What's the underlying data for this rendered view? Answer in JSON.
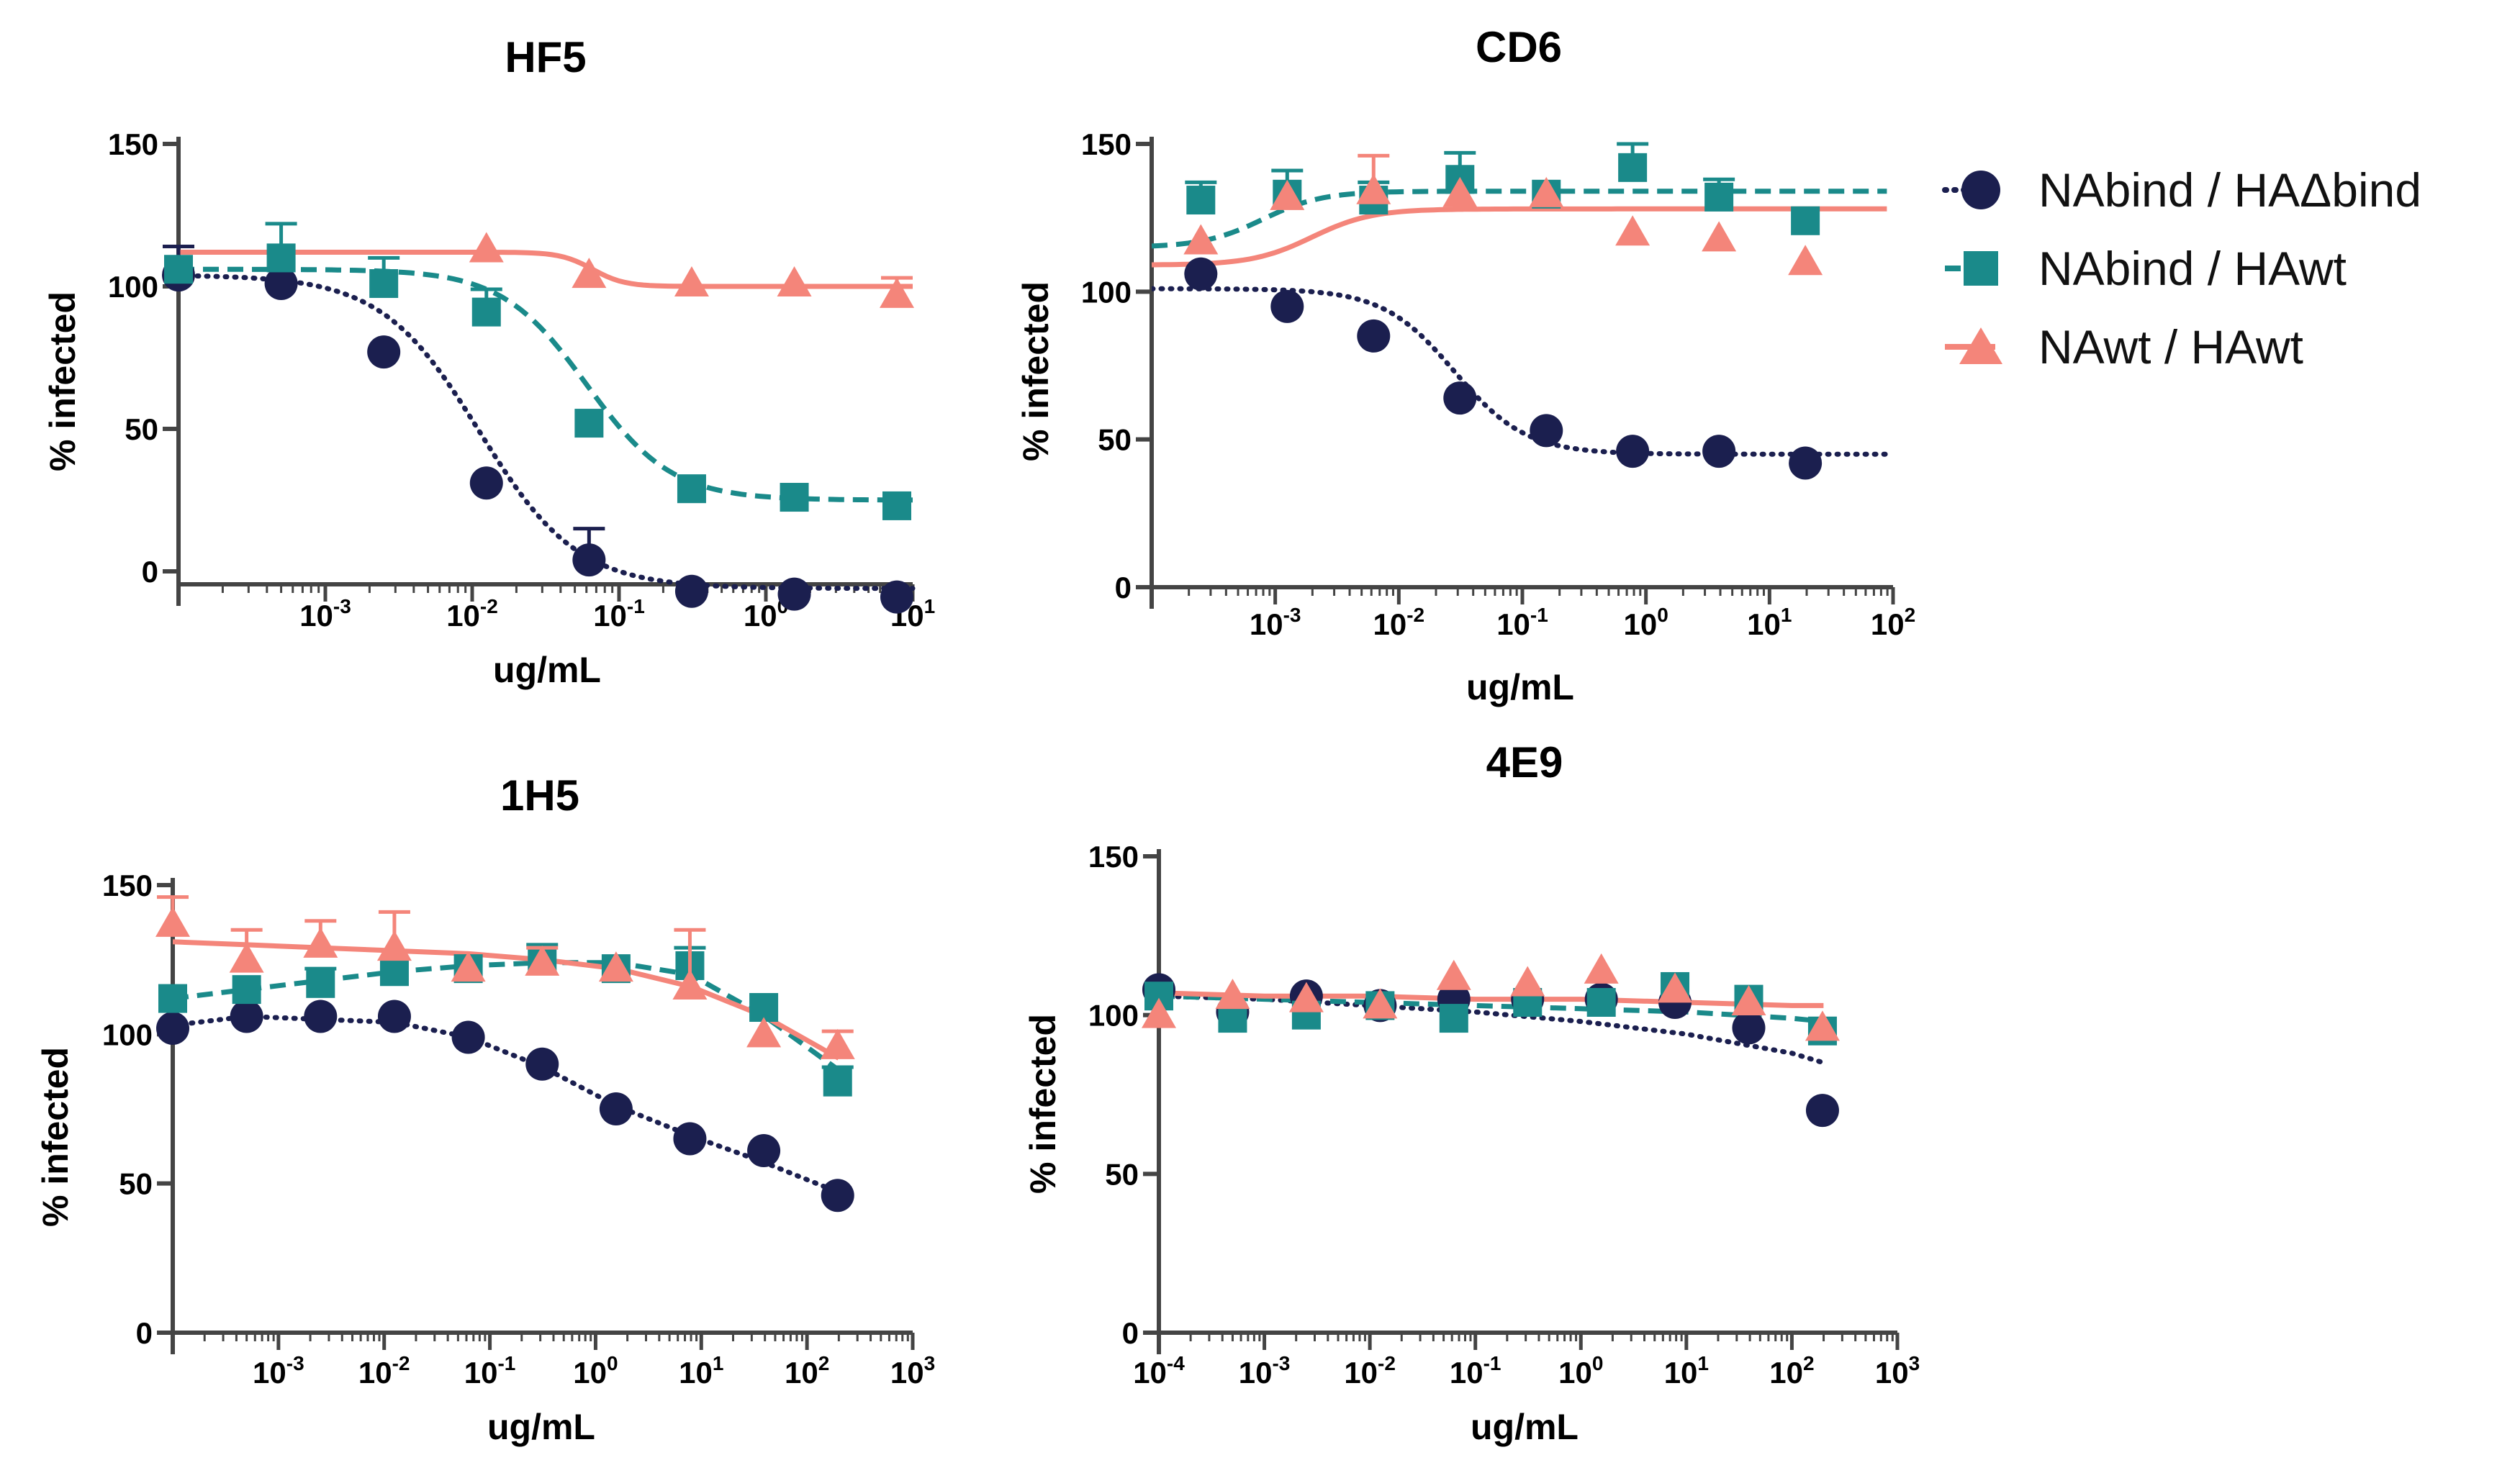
{
  "chart_data": [
    {
      "type": "scatter",
      "title": "HF5",
      "xlabel": "ug/mL",
      "ylabel": "% infected",
      "xscale": "log",
      "xlim": [
        0.0001,
        10
      ],
      "ylim": [
        0,
        150
      ],
      "x_tick_labels": [
        "10-3",
        "10-2",
        "10-1",
        "100",
        "101"
      ],
      "y_tick_labels": [
        "0",
        "50",
        "100",
        "150"
      ],
      "series": [
        {
          "name": "NAbind / HAΔbind",
          "x": [
            0.0001,
            0.0005,
            0.0025,
            0.0125,
            0.0625,
            0.3125,
            1.5625,
            7.8
          ],
          "values": [
            104,
            101,
            77,
            31,
            4,
            -7,
            -8,
            -9
          ],
          "err": [
            10,
            0,
            0,
            0,
            11,
            0,
            0,
            0
          ]
        },
        {
          "name": "NAbind / HAwt",
          "x": [
            0.0001,
            0.0005,
            0.0025,
            0.0125,
            0.0625,
            0.3125,
            1.5625,
            7.8
          ],
          "values": [
            106,
            110,
            101,
            91,
            52,
            29,
            26,
            23
          ],
          "err": [
            0,
            12,
            9,
            8,
            0,
            0,
            0,
            0
          ]
        },
        {
          "name": "NAwt / HAwt",
          "x": [
            0.0125,
            0.0625,
            0.3125,
            1.5625,
            7.8
          ],
          "values": [
            113,
            104,
            101,
            101,
            97
          ],
          "err": [
            0,
            0,
            0,
            0,
            6
          ]
        }
      ]
    },
    {
      "type": "scatter",
      "title": "CD6",
      "xlabel": "ug/mL",
      "ylabel": "% infected",
      "xscale": "log",
      "xlim": [
        0.0001,
        100
      ],
      "ylim": [
        0,
        150
      ],
      "x_tick_labels": [
        "10-3",
        "10-2",
        "10-1",
        "100",
        "101",
        "102"
      ],
      "y_tick_labels": [
        "0",
        "50",
        "100",
        "150"
      ],
      "series": [
        {
          "name": "NAbind / HAΔbind",
          "x": [
            0.00025,
            0.00125,
            0.00625,
            0.03125,
            0.15625,
            0.78,
            3.9,
            19.5
          ],
          "values": [
            106,
            95,
            85,
            64,
            53,
            46,
            46,
            42
          ],
          "err": [
            0,
            0,
            0,
            0,
            0,
            0,
            0,
            0
          ]
        },
        {
          "name": "NAbind / HAwt",
          "x": [
            0.00025,
            0.00125,
            0.00625,
            0.03125,
            0.15625,
            0.78,
            3.9,
            19.5
          ],
          "values": [
            131,
            133,
            131,
            138,
            133,
            142,
            132,
            124
          ],
          "err": [
            6,
            8,
            6,
            9,
            0,
            8,
            6,
            0
          ]
        },
        {
          "name": "NAwt / HAwt",
          "x": [
            0.00025,
            0.00125,
            0.00625,
            0.03125,
            0.15625,
            0.78,
            3.9,
            19.5
          ],
          "values": [
            117,
            132,
            134,
            133,
            133,
            120,
            118,
            110
          ],
          "err": [
            0,
            0,
            12,
            0,
            0,
            0,
            0,
            0
          ]
        }
      ]
    },
    {
      "type": "scatter",
      "title": "1H5",
      "xlabel": "ug/mL",
      "ylabel": "% infected",
      "xscale": "log",
      "xlim": [
        0.0001,
        1000
      ],
      "ylim": [
        0,
        150
      ],
      "x_tick_labels": [
        "10-3",
        "10-2",
        "10-1",
        "100",
        "101",
        "102",
        "103"
      ],
      "y_tick_labels": [
        "0",
        "50",
        "100",
        "150"
      ],
      "series": [
        {
          "name": "NAbind / HAΔbind",
          "x": [
            0.0001,
            0.0005,
            0.0025,
            0.0125,
            0.0625,
            0.3125,
            1.5625,
            7.8,
            39,
            195
          ],
          "values": [
            102,
            106,
            106,
            106,
            99,
            90,
            75,
            65,
            61,
            46
          ],
          "err": [
            0,
            0,
            0,
            0,
            0,
            0,
            0,
            0,
            0,
            0
          ]
        },
        {
          "name": "NAbind / HAwt",
          "x": [
            0.0001,
            0.0005,
            0.0025,
            0.0125,
            0.0625,
            0.3125,
            1.5625,
            7.8,
            39,
            195
          ],
          "values": [
            112,
            115,
            117,
            121,
            122,
            125,
            122,
            123,
            109,
            84
          ],
          "err": [
            0,
            0,
            5,
            0,
            0,
            5,
            0,
            6,
            0,
            5
          ]
        },
        {
          "name": "NAwt / HAwt",
          "x": [
            0.0001,
            0.0005,
            0.0025,
            0.0125,
            0.0625,
            0.3125,
            1.5625,
            7.8,
            39,
            195
          ],
          "values": [
            137,
            125,
            130,
            129,
            122,
            124,
            122,
            116,
            100,
            96
          ],
          "err": [
            9,
            10,
            8,
            12,
            0,
            5,
            0,
            19,
            0,
            5
          ]
        }
      ]
    },
    {
      "type": "scatter",
      "title": "4E9",
      "xlabel": "ug/mL",
      "ylabel": "% infected",
      "xscale": "log",
      "xlim": [
        0.0001,
        1000
      ],
      "ylim": [
        0,
        150
      ],
      "x_tick_labels": [
        "10-4",
        "10-3",
        "10-2",
        "10-1",
        "100",
        "101",
        "102",
        "103"
      ],
      "y_tick_labels": [
        "0",
        "50",
        "100",
        "150"
      ],
      "series": [
        {
          "name": "NAbind / HAΔbind",
          "x": [
            0.0001,
            0.0005,
            0.0025,
            0.0125,
            0.0625,
            0.3125,
            1.5625,
            7.8,
            39,
            195
          ],
          "values": [
            108,
            101,
            106,
            103,
            105,
            105,
            105,
            104,
            96,
            70
          ],
          "err": [
            0,
            0,
            0,
            0,
            0,
            0,
            0,
            0,
            0,
            0
          ]
        },
        {
          "name": "NAbind / HAwt",
          "x": [
            0.0001,
            0.0005,
            0.0025,
            0.0125,
            0.0625,
            0.3125,
            1.5625,
            7.8,
            39,
            195
          ],
          "values": [
            106,
            99,
            100,
            103,
            99,
            104,
            104,
            109,
            105,
            95
          ],
          "err": [
            0,
            0,
            0,
            0,
            0,
            0,
            0,
            0,
            0,
            0
          ]
        },
        {
          "name": "NAwt / HAwt",
          "x": [
            0.0001,
            0.0005,
            0.0025,
            0.0125,
            0.0625,
            0.3125,
            1.5625,
            7.8,
            39,
            195
          ],
          "values": [
            100,
            106,
            105,
            103,
            112,
            110,
            114,
            108,
            104,
            96
          ],
          "err": [
            0,
            0,
            0,
            0,
            0,
            0,
            0,
            0,
            0,
            0
          ]
        }
      ]
    }
  ],
  "legend": {
    "position": "top-right",
    "items": [
      {
        "label": "NAbind / HAΔbind",
        "marker": "circle",
        "line": "dotted",
        "color": "#1b1f4f"
      },
      {
        "label": "NAbind / HAwt",
        "marker": "square",
        "line": "dashed",
        "color": "#1a8a8a"
      },
      {
        "label": "NAwt / HAwt",
        "marker": "triangle",
        "line": "solid",
        "color": "#f4857a"
      }
    ]
  },
  "curves": [
    [
      {
        "type": "sigmoid",
        "top": 104,
        "bottom": -6,
        "log_ic50": -1.95,
        "hill": 1.3
      },
      {
        "type": "sigmoid",
        "top": 106,
        "bottom": 25,
        "log_ic50": -1.22,
        "hill": 1.5
      },
      {
        "type": "step",
        "top": 112,
        "bottom": 100,
        "log_ic50": -1.18,
        "hill": 4
      }
    ],
    [
      {
        "type": "sigmoid",
        "top": 101,
        "bottom": 45,
        "log_ic50": -1.55,
        "hill": 1.5
      },
      {
        "type": "sigmoid",
        "top": 115,
        "bottom": 134,
        "log_ic50": -3.1,
        "hill": 1.8
      },
      {
        "type": "sigmoid",
        "top": 109,
        "bottom": 128,
        "log_ic50": -2.7,
        "hill": 1.8
      }
    ],
    [
      {
        "type": "poly",
        "x": [
          -4,
          -3.3,
          -2.6,
          -1.9,
          -1.2,
          -0.5,
          0.2,
          0.9,
          1.6,
          2.3
        ],
        "y": [
          103,
          106,
          105,
          104,
          99,
          89,
          76,
          66,
          57,
          47
        ]
      },
      {
        "type": "poly",
        "x": [
          -4,
          -3.3,
          -2.6,
          -1.9,
          -1.2,
          -0.5,
          0.2,
          0.9,
          1.6,
          2.3
        ],
        "y": [
          112,
          115,
          118,
          121,
          123,
          124,
          124,
          120,
          106,
          88
        ]
      },
      {
        "type": "poly",
        "x": [
          -4,
          -3.3,
          -2.6,
          -1.9,
          -1.2,
          -0.5,
          0.2,
          0.9,
          1.6,
          2.3
        ],
        "y": [
          131,
          130,
          129,
          128,
          127,
          125,
          122,
          116,
          106,
          92
        ]
      }
    ],
    [
      {
        "type": "poly",
        "x": [
          -4,
          -3,
          -2,
          -1,
          0,
          1,
          2,
          2.3
        ],
        "y": [
          106,
          105,
          103,
          101,
          98,
          94,
          88,
          85
        ]
      },
      {
        "type": "poly",
        "x": [
          -4,
          -3,
          -2,
          -1,
          0,
          1,
          2,
          2.3
        ],
        "y": [
          106,
          105,
          104,
          103,
          102,
          101,
          99,
          98
        ]
      },
      {
        "type": "poly",
        "x": [
          -4,
          -3,
          -2,
          -1,
          0,
          1,
          2,
          2.3
        ],
        "y": [
          107,
          106,
          106,
          105,
          105,
          104,
          103,
          103
        ]
      }
    ]
  ],
  "colors": {
    "circle": "#1b1f4f",
    "square": "#1a8a8a",
    "triangle": "#f4857a",
    "axis": "#444444"
  }
}
